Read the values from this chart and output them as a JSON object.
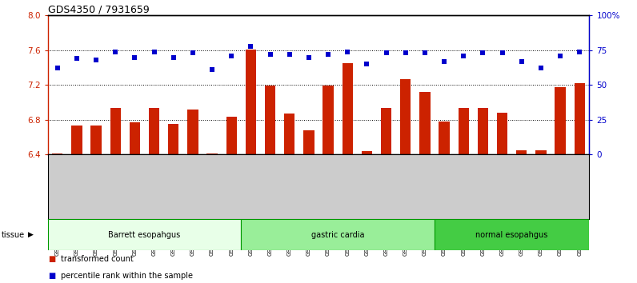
{
  "title": "GDS4350 / 7931659",
  "samples": [
    "GSM851983",
    "GSM851984",
    "GSM851985",
    "GSM851986",
    "GSM851987",
    "GSM851988",
    "GSM851989",
    "GSM851990",
    "GSM851991",
    "GSM851992",
    "GSM852001",
    "GSM852002",
    "GSM852003",
    "GSM852004",
    "GSM852005",
    "GSM852006",
    "GSM852007",
    "GSM852008",
    "GSM852009",
    "GSM852010",
    "GSM851993",
    "GSM851994",
    "GSM851995",
    "GSM851996",
    "GSM851997",
    "GSM851998",
    "GSM851999",
    "GSM852000"
  ],
  "bar_values": [
    6.41,
    6.73,
    6.73,
    6.93,
    6.77,
    6.93,
    6.75,
    6.92,
    6.41,
    6.83,
    7.61,
    7.19,
    6.87,
    6.68,
    7.19,
    7.45,
    6.44,
    6.93,
    7.27,
    7.12,
    6.78,
    6.93,
    6.93,
    6.88,
    6.45,
    6.45,
    7.17,
    7.22
  ],
  "blue_pct": [
    62,
    69,
    68,
    74,
    70,
    74,
    70,
    73,
    61,
    71,
    78,
    72,
    72,
    70,
    72,
    74,
    65,
    73,
    73,
    73,
    67,
    71,
    73,
    73,
    67,
    62,
    71,
    74
  ],
  "groups": [
    {
      "label": "Barrett esopahgus",
      "start": 0,
      "end": 10,
      "color": "#e8ffe8"
    },
    {
      "label": "gastric cardia",
      "start": 10,
      "end": 20,
      "color": "#99ee99"
    },
    {
      "label": "normal esopahgus",
      "start": 20,
      "end": 28,
      "color": "#44cc44"
    }
  ],
  "ylim_left": [
    6.4,
    8.0
  ],
  "yticks_left": [
    6.4,
    6.8,
    7.2,
    7.6,
    8.0
  ],
  "ylim_right": [
    0,
    100
  ],
  "yticks_right": [
    0,
    25,
    50,
    75,
    100
  ],
  "ytick_right_labels": [
    "0",
    "25",
    "50",
    "75",
    "100%"
  ],
  "bar_color": "#cc2200",
  "dot_color": "#0000cc",
  "bar_bottom": 6.4,
  "hlines": [
    6.8,
    7.2,
    7.6
  ],
  "legend": [
    {
      "label": "transformed count",
      "color": "#cc2200"
    },
    {
      "label": "percentile rank within the sample",
      "color": "#0000cc"
    }
  ],
  "tissue_label": "tissue",
  "xticklabel_bg": "#cccccc"
}
